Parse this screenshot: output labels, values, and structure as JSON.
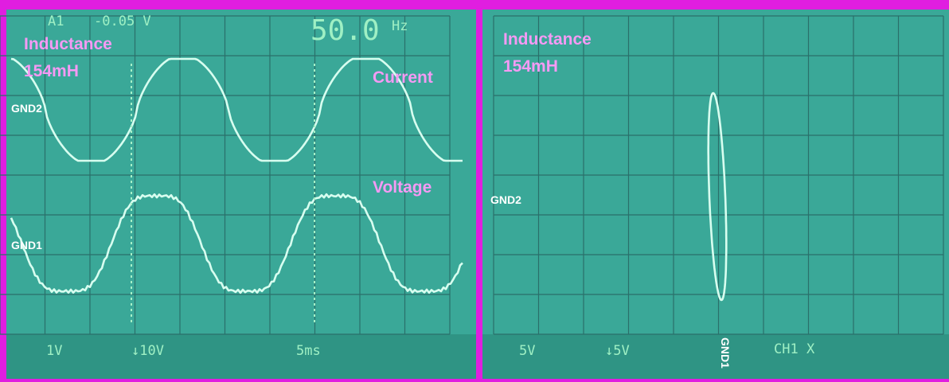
{
  "left": {
    "title_line1": "Inductance",
    "title_line2": "154mH",
    "readout_channel": "A1",
    "readout_offset": "-0.05 V",
    "readout_freq": "50.0",
    "readout_unit": "Hz",
    "current_label": "Current",
    "voltage_label": "Voltage",
    "gnd2": "GND2",
    "gnd1": "GND1",
    "ch1_scale": "1V",
    "ch2_scale": "↓10V",
    "timebase": "5ms"
  },
  "right": {
    "title_line1": "Inductance",
    "title_line2": "154mH",
    "gnd2": "GND2",
    "gnd1": "GND1",
    "ch1_scale": "5V",
    "ch2_scale": "↓5V",
    "mode": "CH1 X"
  }
}
